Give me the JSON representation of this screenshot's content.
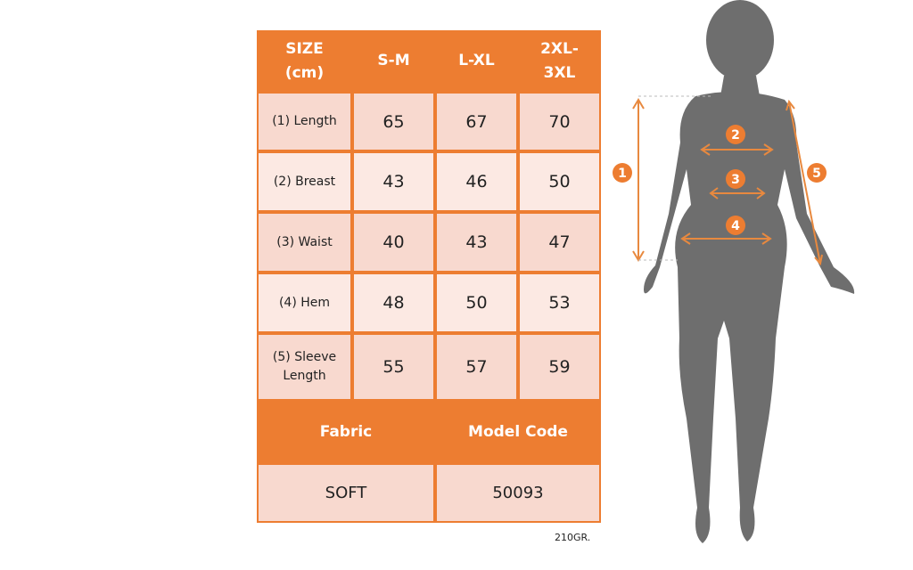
{
  "size_table": {
    "header": [
      "SIZE (cm)",
      "S-M",
      "L-XL",
      "2XL-3XL"
    ],
    "header_lines": [
      [
        "SIZE",
        "(cm)"
      ],
      [
        "S-M"
      ],
      [
        "L-XL"
      ],
      [
        "2XL-",
        "3XL"
      ]
    ],
    "rows": [
      {
        "label": "(1) Length",
        "label_lines": [
          "(1) Length"
        ],
        "values": [
          "65",
          "67",
          "70"
        ]
      },
      {
        "label": "(2) Breast",
        "label_lines": [
          "(2) Breast"
        ],
        "values": [
          "43",
          "46",
          "50"
        ]
      },
      {
        "label": "(3) Waist",
        "label_lines": [
          "(3) Waist"
        ],
        "values": [
          "40",
          "43",
          "47"
        ]
      },
      {
        "label": "(4) Hem",
        "label_lines": [
          "(4) Hem"
        ],
        "values": [
          "48",
          "50",
          "53"
        ]
      },
      {
        "label": "(5) Sleeve Length",
        "label_lines": [
          "(5) Sleeve",
          "Length"
        ],
        "values": [
          "55",
          "57",
          "59"
        ]
      }
    ],
    "footer_headers": [
      "Fabric",
      "Model Code"
    ],
    "footer_values": [
      "SOFT",
      "50093"
    ]
  },
  "weight_note": "210GR.",
  "figure_markers": [
    "1",
    "2",
    "3",
    "4",
    "5"
  ],
  "colors": {
    "accent": "#ed7d31",
    "row_dark": "#f8d9cf",
    "row_light": "#fce9e3",
    "silhouette": "#6e6e6e"
  }
}
